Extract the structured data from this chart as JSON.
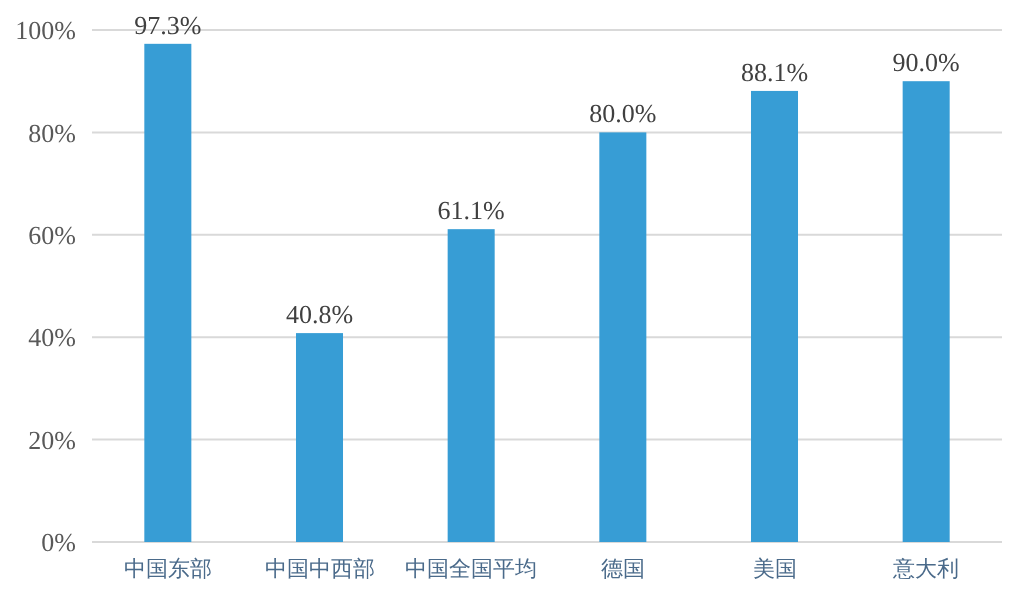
{
  "chart_data": {
    "type": "bar",
    "categories": [
      "中国东部",
      "中国中西部",
      "中国全国平均",
      "德国",
      "美国",
      "意大利"
    ],
    "values": [
      97.3,
      40.8,
      61.1,
      80.0,
      88.1,
      90.0
    ],
    "value_labels": [
      "97.3%",
      "40.8%",
      "61.1%",
      "80.0%",
      "88.1%",
      "90.0%"
    ],
    "color": "#379dd5",
    "ylim": [
      0,
      100
    ],
    "yticks": [
      {
        "value": 0,
        "label": "0%"
      },
      {
        "value": 20,
        "label": "20%"
      },
      {
        "value": 40,
        "label": "40%"
      },
      {
        "value": 60,
        "label": "60%"
      },
      {
        "value": 80,
        "label": "80%"
      },
      {
        "value": 100,
        "label": "100%"
      }
    ],
    "grid": "y"
  }
}
